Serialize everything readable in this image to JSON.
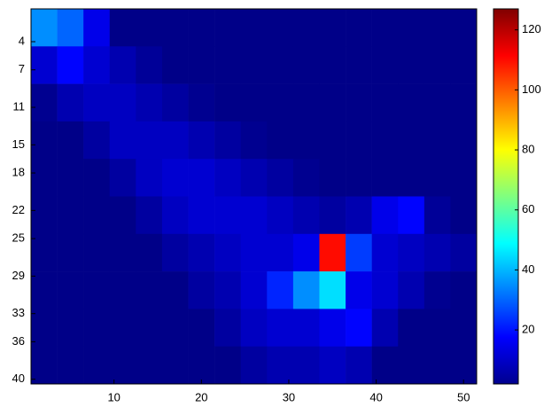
{
  "chart_data": {
    "type": "heatmap",
    "colormap": "jet",
    "y_reversed": true,
    "x": [
      2,
      5,
      8,
      11,
      14,
      17,
      20,
      23,
      26,
      29,
      32,
      35,
      38,
      41,
      44,
      47,
      50
    ],
    "y": [
      2.5,
      6.5,
      10.5,
      14.5,
      18.5,
      22.5,
      26.5,
      30.5,
      34.5,
      38.5
    ],
    "z": [
      [
        35,
        30,
        15,
        3,
        3,
        3,
        3,
        3,
        3,
        3,
        3,
        3,
        3,
        3,
        3,
        3,
        3
      ],
      [
        12,
        18,
        12,
        8,
        5,
        3,
        3,
        3,
        3,
        3,
        3,
        3,
        3,
        3,
        3,
        3,
        3
      ],
      [
        4,
        8,
        10,
        10,
        8,
        6,
        4,
        3,
        3,
        3,
        3,
        3,
        3,
        3,
        3,
        3,
        3
      ],
      [
        3,
        3,
        6,
        10,
        10,
        10,
        8,
        6,
        4,
        3,
        3,
        3,
        3,
        3,
        3,
        3,
        3
      ],
      [
        3,
        3,
        3,
        6,
        10,
        12,
        12,
        10,
        8,
        6,
        4,
        3,
        3,
        3,
        3,
        3,
        3
      ],
      [
        3,
        3,
        3,
        3,
        6,
        10,
        12,
        12,
        12,
        10,
        8,
        6,
        8,
        15,
        18,
        5,
        3
      ],
      [
        3,
        3,
        3,
        3,
        3,
        6,
        8,
        10,
        12,
        12,
        15,
        110,
        25,
        12,
        10,
        8,
        6
      ],
      [
        3,
        3,
        3,
        3,
        3,
        3,
        6,
        8,
        12,
        22,
        35,
        45,
        15,
        12,
        8,
        4,
        3
      ],
      [
        3,
        3,
        3,
        3,
        3,
        3,
        3,
        6,
        10,
        12,
        12,
        15,
        18,
        8,
        3,
        3,
        3
      ],
      [
        3,
        3,
        3,
        3,
        3,
        3,
        3,
        3,
        6,
        8,
        8,
        10,
        8,
        3,
        3,
        3,
        3
      ]
    ],
    "xlim": [
      0.5,
      51.5
    ],
    "ylim": [
      0.5,
      40.5
    ],
    "xticks": [
      10,
      20,
      30,
      40,
      50
    ],
    "yticks": [
      4,
      7,
      11,
      15,
      18,
      22,
      25,
      29,
      33,
      36,
      40
    ],
    "clim": [
      2,
      127
    ],
    "cticks": [
      20,
      40,
      60,
      80,
      100,
      120
    ]
  }
}
